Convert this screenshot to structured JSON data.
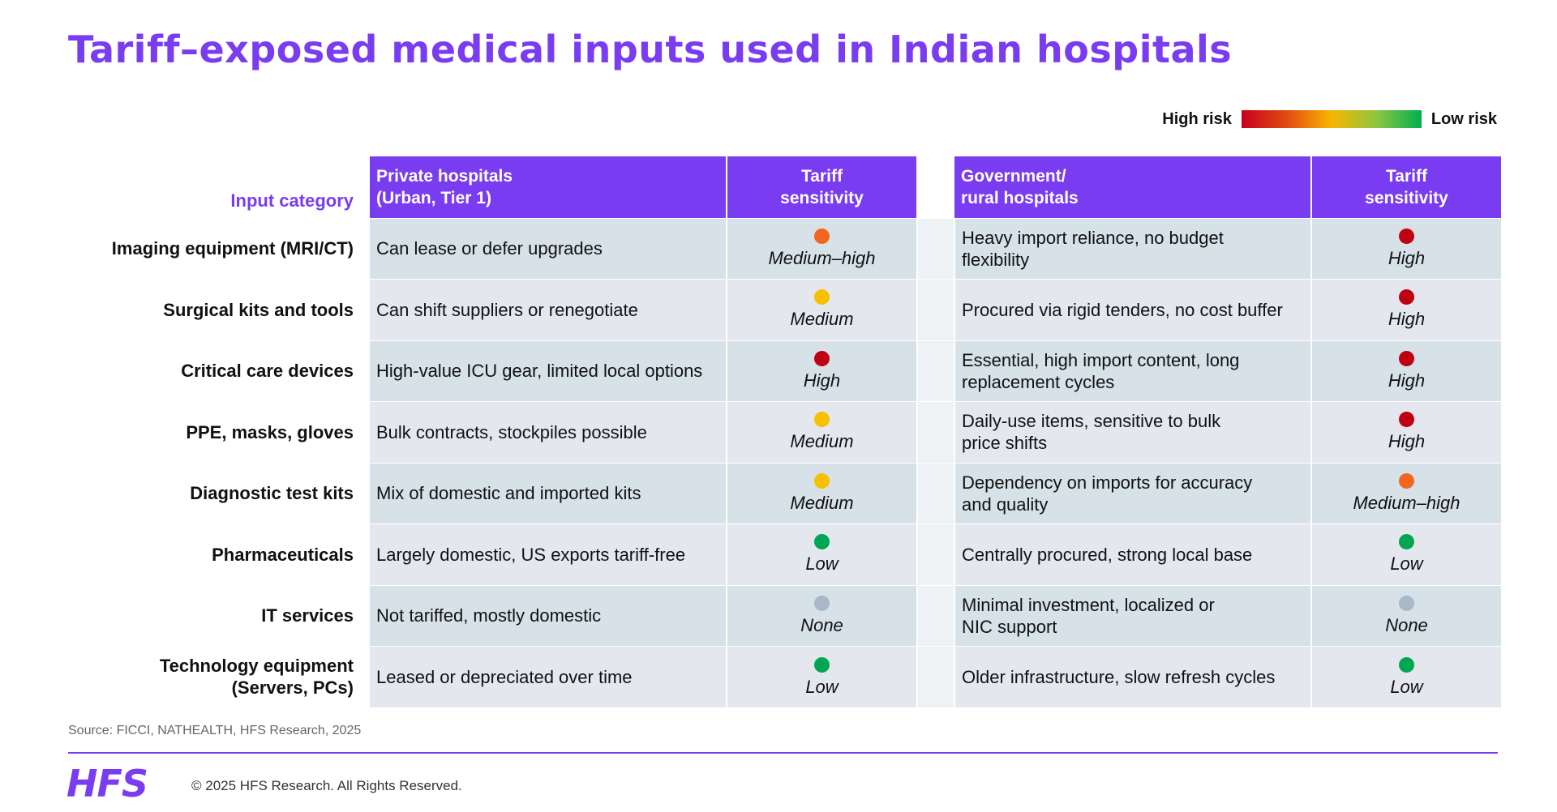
{
  "title": "Tariff–exposed medical inputs used in Indian hospitals",
  "legend": {
    "high_label": "High risk",
    "low_label": "Low risk",
    "gradient_colors": [
      "#c8001e",
      "#e24a10",
      "#f7b600",
      "#8cc63f",
      "#00b050"
    ]
  },
  "headers": {
    "input_category": "Input category",
    "private": "Private hospitals\n(Urban, Tier 1)",
    "private_sens": "Tariff\nsensitivity",
    "govt": "Government/\nrural hospitals",
    "govt_sens": "Tariff\nsensitivity"
  },
  "risk_colors": {
    "High": "#c00012",
    "Medium–high": "#f2661f",
    "Medium": "#f7c000",
    "Low": "#00a651",
    "None": "#a9b8c6"
  },
  "rows": [
    {
      "category": "Imaging equipment (MRI/CT)",
      "private_desc": "Can lease or defer upgrades",
      "private_sens": "Medium–high",
      "govt_desc": "Heavy import reliance, no budget\nflexibility",
      "govt_sens": "High"
    },
    {
      "category": "Surgical kits and tools",
      "private_desc": "Can shift suppliers or renegotiate",
      "private_sens": "Medium",
      "govt_desc": "Procured via rigid tenders, no cost buffer",
      "govt_sens": "High"
    },
    {
      "category": "Critical care devices",
      "private_desc": "High-value ICU gear, limited local options",
      "private_sens": "High",
      "govt_desc": "Essential, high import content, long\nreplacement cycles",
      "govt_sens": "High"
    },
    {
      "category": "PPE, masks, gloves",
      "private_desc": "Bulk contracts, stockpiles possible",
      "private_sens": "Medium",
      "govt_desc": "Daily-use items, sensitive to bulk\nprice shifts",
      "govt_sens": "High"
    },
    {
      "category": "Diagnostic test kits",
      "private_desc": "Mix of domestic and imported kits",
      "private_sens": "Medium",
      "govt_desc": "Dependency on imports for accuracy\nand quality",
      "govt_sens": "Medium–high"
    },
    {
      "category": "Pharmaceuticals",
      "private_desc": "Largely domestic, US exports tariff-free",
      "private_sens": "Low",
      "govt_desc": "Centrally procured, strong local base",
      "govt_sens": "Low"
    },
    {
      "category": "IT services",
      "private_desc": "Not tariffed, mostly domestic",
      "private_sens": "None",
      "govt_desc": "Minimal investment, localized or\nNIC support",
      "govt_sens": "None"
    },
    {
      "category": "Technology equipment\n(Servers, PCs)",
      "private_desc": "Leased or depreciated over time",
      "private_sens": "Low",
      "govt_desc": "Older infrastructure, slow refresh cycles",
      "govt_sens": "Low"
    }
  ],
  "source": "Source: FICCI, NATHEALTH, HFS Research, 2025",
  "logo": "HFS",
  "copyright": "© 2025 HFS Research. All Rights Reserved."
}
